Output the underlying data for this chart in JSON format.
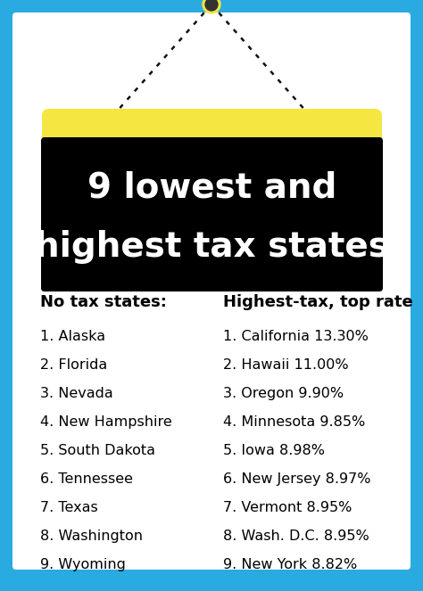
{
  "bg_color": "#29ABE2",
  "inner_bg_color": "#FFFFFF",
  "title_line1": "9 lowest and",
  "title_line2": "highest tax states",
  "title_bg_color": "#000000",
  "title_text_color": "#FFFFFF",
  "sign_color": "#F5E642",
  "left_header": "No tax states:",
  "right_header": "Highest-tax, top rate",
  "left_items": [
    "1. Alaska",
    "2. Florida",
    "3. Nevada",
    "4. New Hampshire",
    "5. South Dakota",
    "6. Tennessee",
    "7. Texas",
    "8. Washington",
    "9. Wyoming"
  ],
  "right_items": [
    "1. California 13.30%",
    "2. Hawaii 11.00%",
    "3. Oregon 9.90%",
    "4. Minnesota 9.85%",
    "5. Iowa 8.98%",
    "6. New Jersey 8.97%",
    "7. Vermont 8.95%",
    "8. Wash. D.C. 8.95%",
    "9. New York 8.82%"
  ]
}
